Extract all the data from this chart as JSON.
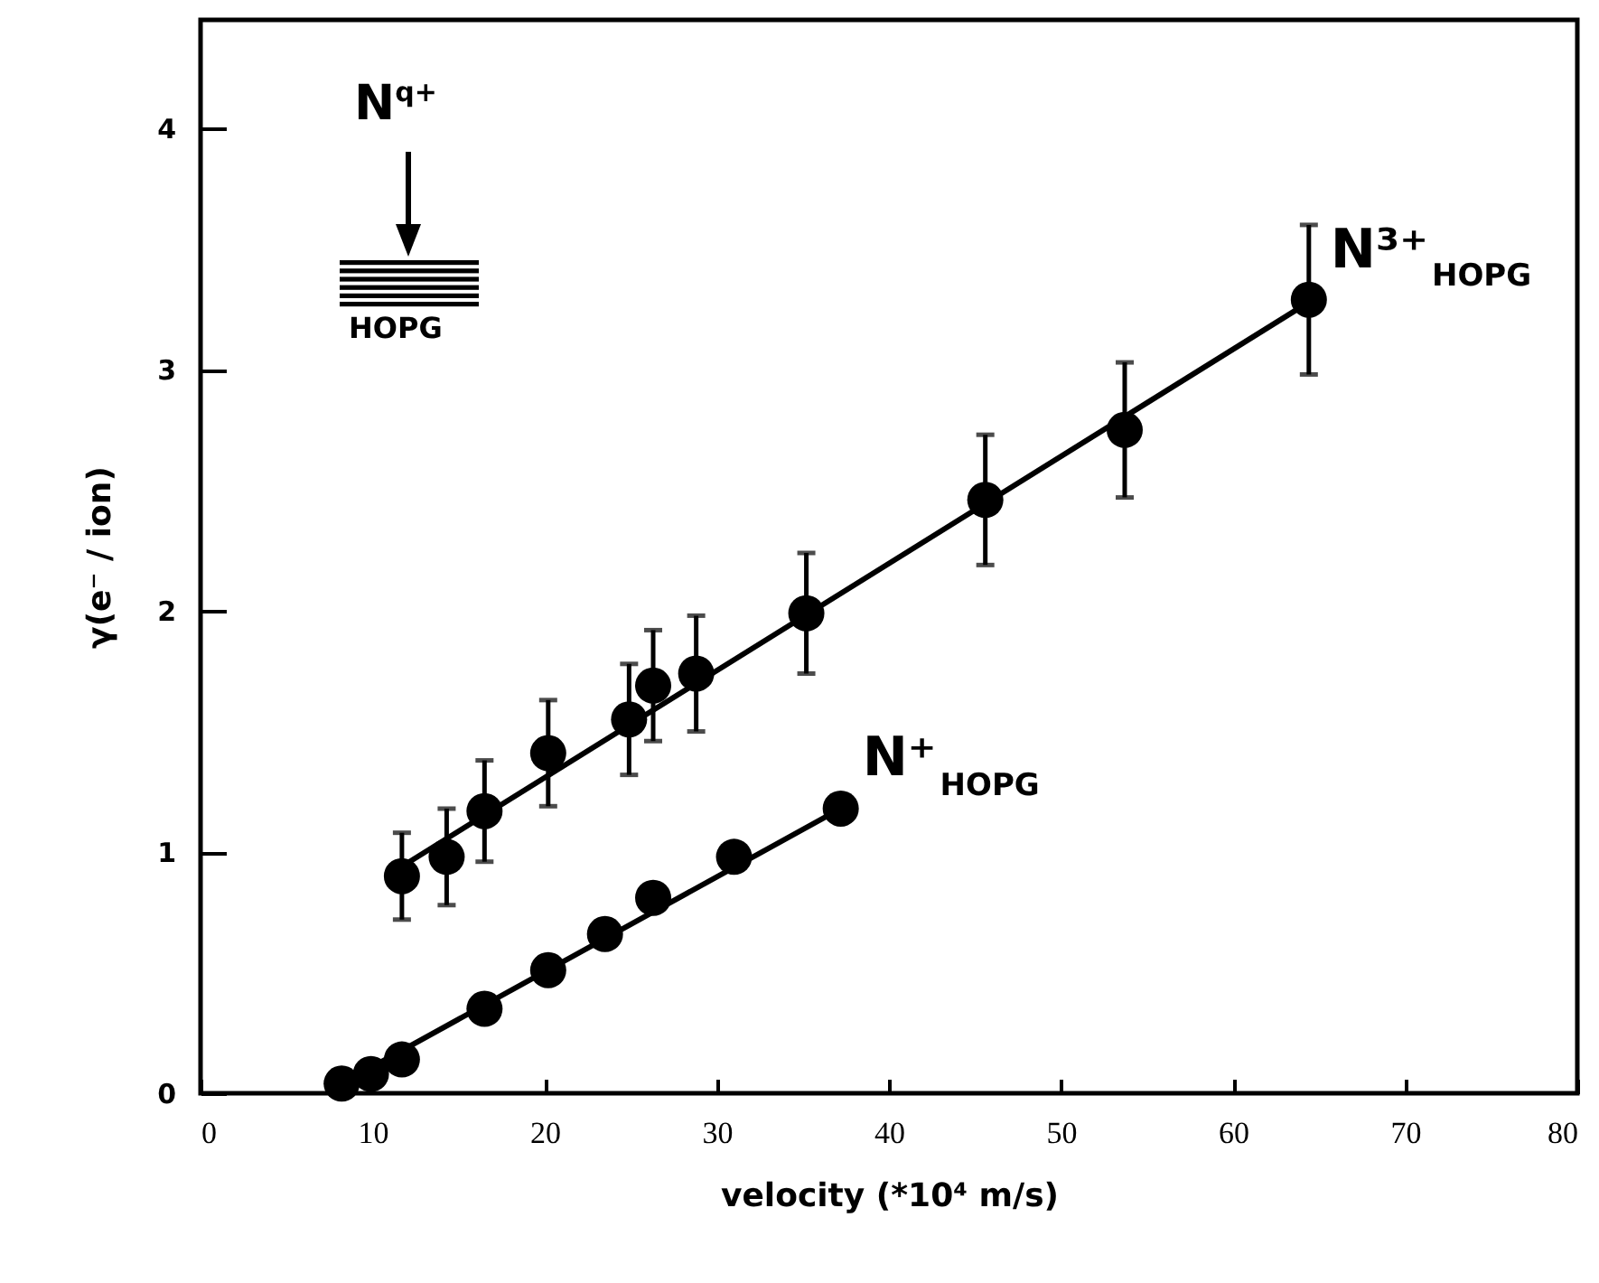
{
  "chart_data": {
    "type": "scatter",
    "xlabel": "velocity (*10⁴ m/s)",
    "ylabel": "γ(e⁻ / ion)",
    "xlim": [
      0,
      80
    ],
    "xticks": [
      0,
      10,
      20,
      30,
      40,
      50,
      60,
      70,
      80
    ],
    "ylim": [
      0,
      4.45
    ],
    "yticks": [
      0,
      1,
      2,
      3,
      4
    ],
    "marker": "circle",
    "annotations": [
      "N$^{q+}$",
      "HOPG"
    ],
    "series": [
      {
        "type": "line",
        "color": "#000000",
        "marker": "none",
        "x": [
          11.7,
          64.4
        ],
        "values": [
          0.94,
          3.28
        ]
      },
      {
        "type": "line",
        "color": "#000000",
        "marker": "none",
        "x": [
          8.2,
          37.2
        ],
        "values": [
          0.04,
          1.18
        ]
      },
      {
        "name": "N³⁺$_{HOPG}$",
        "color": "#000000",
        "x": [
          11.7,
          14.3,
          16.5,
          20.2,
          24.9,
          26.3,
          28.8,
          35.2,
          45.6,
          53.7,
          64.4
        ],
        "values": [
          0.9,
          0.98,
          1.17,
          1.41,
          1.55,
          1.69,
          1.74,
          1.99,
          2.46,
          2.75,
          3.29
        ],
        "errors": [
          0.18,
          0.2,
          0.21,
          0.22,
          0.23,
          0.23,
          0.24,
          0.25,
          0.27,
          0.28,
          0.31
        ]
      },
      {
        "name": "N⁺$_{HOPG}$",
        "color": "#000000",
        "x": [
          8.2,
          9.9,
          11.7,
          16.5,
          20.2,
          23.5,
          26.3,
          31.0,
          37.2
        ],
        "values": [
          0.04,
          0.08,
          0.14,
          0.35,
          0.51,
          0.66,
          0.81,
          0.98,
          1.18
        ]
      }
    ]
  }
}
